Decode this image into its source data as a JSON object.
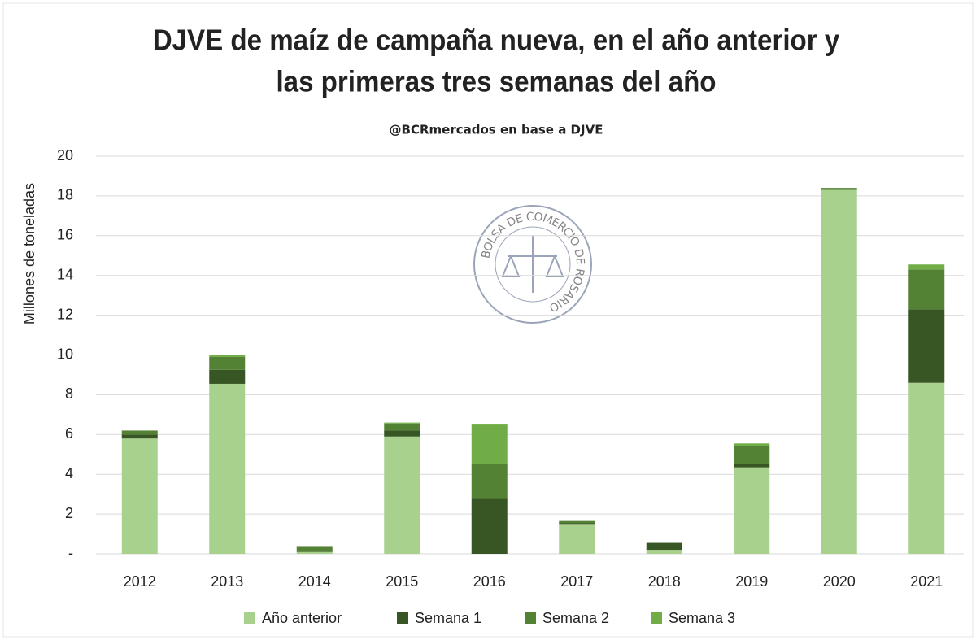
{
  "chart_data": {
    "type": "stacked_bar",
    "title": [
      "DJVE de maíz de campaña nueva, en el año anterior y",
      "las primeras tres semanas del año"
    ],
    "subtitle": "@BCRmercados  en base a DJVE",
    "ylabel": "Millones de toneladas",
    "watermark": "BOLSA DE COMERCIO DE ROSARIO",
    "categories": [
      "2012",
      "2013",
      "2014",
      "2015",
      "2016",
      "2017",
      "2018",
      "2019",
      "2020",
      "2021"
    ],
    "series": [
      {
        "name": "Año anterior",
        "color": "#a9d18e",
        "values": [
          5.8,
          8.55,
          0.1,
          5.9,
          0,
          1.5,
          0.2,
          4.35,
          18.3,
          8.6
        ]
      },
      {
        "name": "Semana 1",
        "color": "#375623",
        "values": [
          0.2,
          0.7,
          0.05,
          0.3,
          2.8,
          0.05,
          0.35,
          0.15,
          0,
          3.7
        ]
      },
      {
        "name": "Semana 2",
        "color": "#548235",
        "values": [
          0.2,
          0.65,
          0.2,
          0.35,
          1.7,
          0.1,
          0,
          0.9,
          0.1,
          2.0
        ]
      },
      {
        "name": "Semana 3",
        "color": "#70ad47",
        "values": [
          0,
          0.1,
          0,
          0.05,
          2.0,
          0,
          0,
          0.15,
          0,
          0.25
        ]
      }
    ],
    "ylim": [
      0,
      20
    ],
    "yticks": [
      {
        "value": 0,
        "label": "-"
      },
      2,
      4,
      6,
      8,
      10,
      12,
      14,
      16,
      18,
      20
    ],
    "grid": true,
    "legend": "bottom"
  }
}
